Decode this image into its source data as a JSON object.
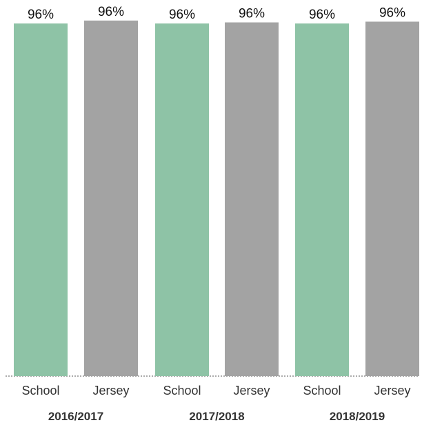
{
  "chart_data": {
    "type": "bar",
    "groups": [
      "2016/2017",
      "2017/2018",
      "2018/2019"
    ],
    "categories": [
      "School",
      "Jersey",
      "School",
      "Jersey",
      "School",
      "Jersey"
    ],
    "group_index": [
      0,
      0,
      1,
      1,
      2,
      2
    ],
    "values": [
      95.5,
      96.3,
      95.5,
      95.8,
      95.5,
      96.0
    ],
    "data_labels": [
      "96%",
      "96%",
      "96%",
      "96%",
      "96%",
      "96%"
    ],
    "ylim": [
      0,
      100
    ],
    "title": "",
    "xlabel": "",
    "ylabel": "",
    "grid": false,
    "colors": {
      "School": "#8ec3a6",
      "Jersey": "#a3a3a3",
      "baseline": "#555555"
    }
  }
}
